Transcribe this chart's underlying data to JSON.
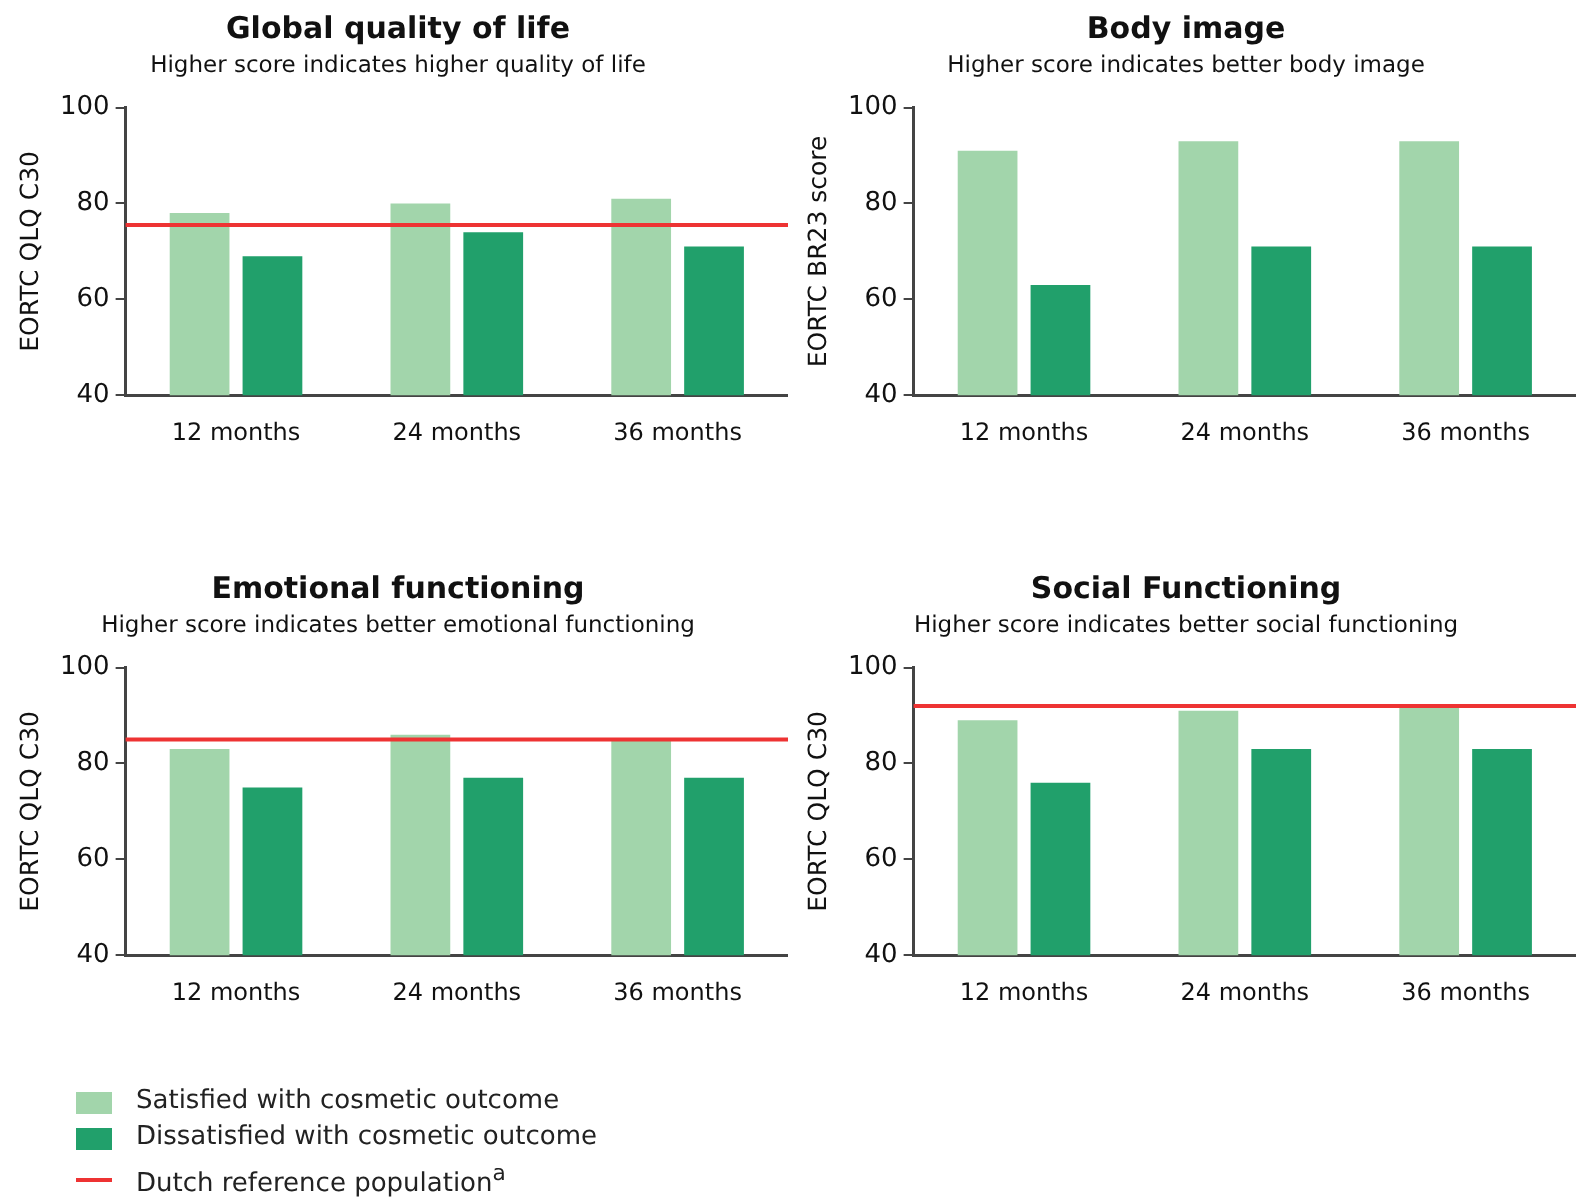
{
  "chart_data": [
    {
      "type": "bar",
      "title": "Global quality of life",
      "subtitle": "Higher score indicates higher quality of life",
      "ylabel": "EORTC QLQ C30",
      "categories": [
        "12 months",
        "24 months",
        "36 months"
      ],
      "series": [
        {
          "color": "#a2d5ab",
          "values": [
            78,
            80,
            81
          ]
        },
        {
          "color": "#21a06b",
          "values": [
            69,
            74,
            71
          ]
        }
      ],
      "ylim": [
        40,
        100
      ],
      "yticks": [
        40,
        60,
        80,
        100
      ],
      "grid": false,
      "legend": false,
      "ref_lines": [
        {
          "axis": "y",
          "value": 75.5,
          "color": "#ee3333"
        }
      ]
    },
    {
      "type": "bar",
      "title": "Body image",
      "subtitle": "Higher score indicates better body image",
      "ylabel": "EORTC BR23 score",
      "categories": [
        "12 months",
        "24 months",
        "36 months"
      ],
      "series": [
        {
          "color": "#a2d5ab",
          "values": [
            91,
            93,
            93
          ]
        },
        {
          "color": "#21a06b",
          "values": [
            63,
            71,
            71
          ]
        }
      ],
      "ylim": [
        40,
        100
      ],
      "yticks": [
        40,
        60,
        80,
        100
      ],
      "grid": false,
      "legend": false
    },
    {
      "type": "bar",
      "title": "Emotional functioning",
      "subtitle": "Higher score indicates better emotional functioning",
      "ylabel": "EORTC QLQ C30",
      "categories": [
        "12 months",
        "24 months",
        "36 months"
      ],
      "series": [
        {
          "name": "Satisfied with cosmetic outcome",
          "color": "#a2d5ab",
          "values": [
            83,
            86,
            85
          ]
        },
        {
          "name": "Dissatisfied with cosmetic outcome",
          "color": "#21a06b",
          "values": [
            75,
            77,
            77
          ]
        }
      ],
      "ylim": [
        40,
        100
      ],
      "yticks": [
        40,
        60,
        80,
        100
      ],
      "grid": false,
      "legend": "bottom left",
      "ref_lines": [
        {
          "axis": "y",
          "value": 85,
          "label": "Dutch reference population$^{a}$",
          "color": "#ee3333"
        }
      ]
    },
    {
      "type": "bar",
      "title": "Social Functioning",
      "subtitle": "Higher score indicates better social functioning",
      "ylabel": "EORTC QLQ C30",
      "categories": [
        "12 months",
        "24 months",
        "36 months"
      ],
      "series": [
        {
          "color": "#a2d5ab",
          "values": [
            89,
            91,
            92
          ]
        },
        {
          "color": "#21a06b",
          "values": [
            76,
            83,
            83
          ]
        }
      ],
      "ylim": [
        40,
        100
      ],
      "yticks": [
        40,
        60,
        80,
        100
      ],
      "grid": false,
      "legend": false,
      "ref_lines": [
        {
          "axis": "y",
          "value": 92,
          "color": "#ee3333"
        }
      ]
    }
  ]
}
